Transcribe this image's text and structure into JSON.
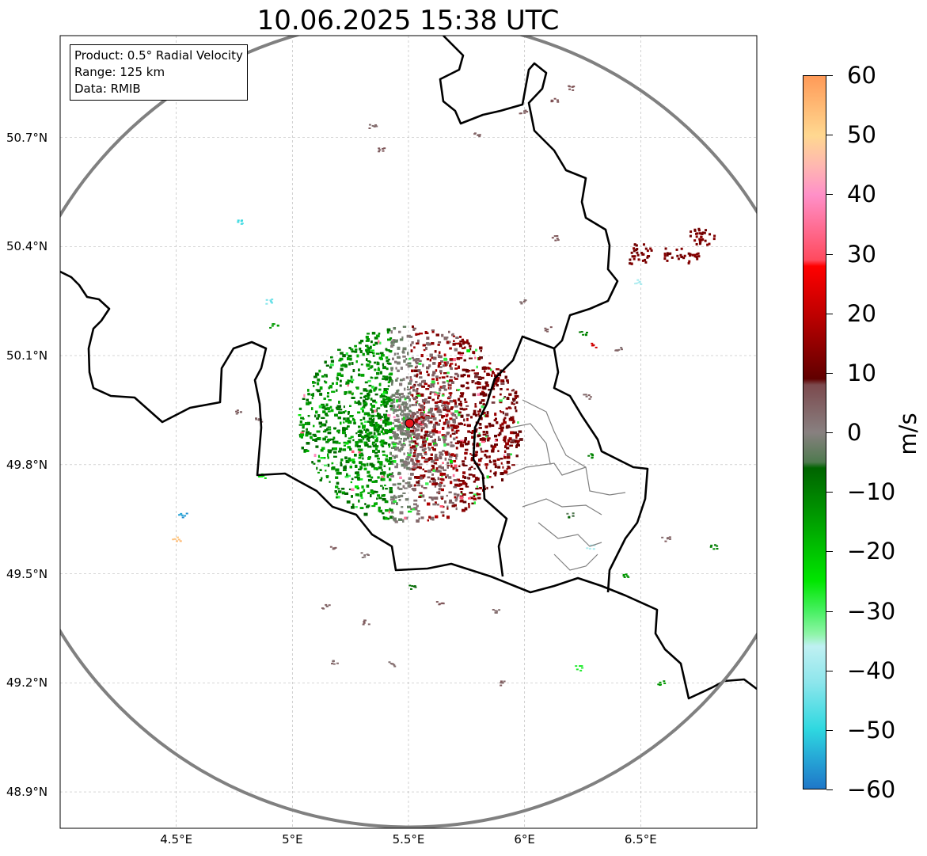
{
  "title": "10.06.2025 15:38 UTC",
  "info_box": [
    "Product: 0.5° Radial Velocity",
    "Range: 125 km",
    "Data: RMIB"
  ],
  "map": {
    "lon_range": [
      4.0,
      7.0
    ],
    "lat_range": [
      48.8,
      50.98
    ],
    "lat_ticks": [
      {
        "value": 48.9,
        "label": "48.9°N"
      },
      {
        "value": 49.2,
        "label": "49.2°N"
      },
      {
        "value": 49.5,
        "label": "49.5°N"
      },
      {
        "value": 49.8,
        "label": "49.8°N"
      },
      {
        "value": 50.1,
        "label": "50.1°N"
      },
      {
        "value": 50.4,
        "label": "50.4°N"
      },
      {
        "value": 50.7,
        "label": "50.7°N"
      }
    ],
    "lon_ticks": [
      {
        "value": 4.5,
        "label": "4.5°E"
      },
      {
        "value": 5.0,
        "label": "5°E"
      },
      {
        "value": 5.5,
        "label": "5.5°E"
      },
      {
        "value": 6.0,
        "label": "6°E"
      },
      {
        "value": 6.5,
        "label": "6.5°E"
      }
    ],
    "radar_site": {
      "lon": 5.505,
      "lat": 49.914
    },
    "range_km": 125,
    "gridlines": true,
    "colors": {
      "range_ring": "#808080",
      "radar_site": "#e8141b",
      "border": "#000000",
      "admin_border": "#808080"
    }
  },
  "colorbar": {
    "unit": "m/s",
    "min": -60,
    "max": 60,
    "ticks": [
      {
        "value": 60,
        "label": "60"
      },
      {
        "value": 50,
        "label": "50"
      },
      {
        "value": 40,
        "label": "40"
      },
      {
        "value": 30,
        "label": "30"
      },
      {
        "value": 20,
        "label": "20"
      },
      {
        "value": 10,
        "label": "10"
      },
      {
        "value": 0,
        "label": "0"
      },
      {
        "value": -10,
        "label": "−10"
      },
      {
        "value": -20,
        "label": "−20"
      },
      {
        "value": -30,
        "label": "−30"
      },
      {
        "value": -40,
        "label": "−40"
      },
      {
        "value": -50,
        "label": "−50"
      },
      {
        "value": -60,
        "label": "−60"
      }
    ],
    "stops": [
      {
        "value": -60,
        "color": "#1f77c8"
      },
      {
        "value": -55,
        "color": "#26a6d6"
      },
      {
        "value": -50,
        "color": "#2ed8e0"
      },
      {
        "value": -42,
        "color": "#8ee6ec"
      },
      {
        "value": -36,
        "color": "#bff0f2"
      },
      {
        "value": -34,
        "color": "#8ff5a8"
      },
      {
        "value": -30,
        "color": "#46f060"
      },
      {
        "value": -25,
        "color": "#00e600"
      },
      {
        "value": -15,
        "color": "#00a000"
      },
      {
        "value": -6,
        "color": "#006400"
      },
      {
        "value": -5,
        "color": "#4f7a4f"
      },
      {
        "value": 0,
        "color": "#888080"
      },
      {
        "value": 8,
        "color": "#7c4a4e"
      },
      {
        "value": 9,
        "color": "#600000"
      },
      {
        "value": 20,
        "color": "#c00000"
      },
      {
        "value": 28,
        "color": "#ff0000"
      },
      {
        "value": 29,
        "color": "#ff4a5e"
      },
      {
        "value": 40,
        "color": "#ff90c8"
      },
      {
        "value": 45,
        "color": "#ffb8b0"
      },
      {
        "value": 50,
        "color": "#ffd890"
      },
      {
        "value": 60,
        "color": "#ff9a58"
      }
    ]
  }
}
